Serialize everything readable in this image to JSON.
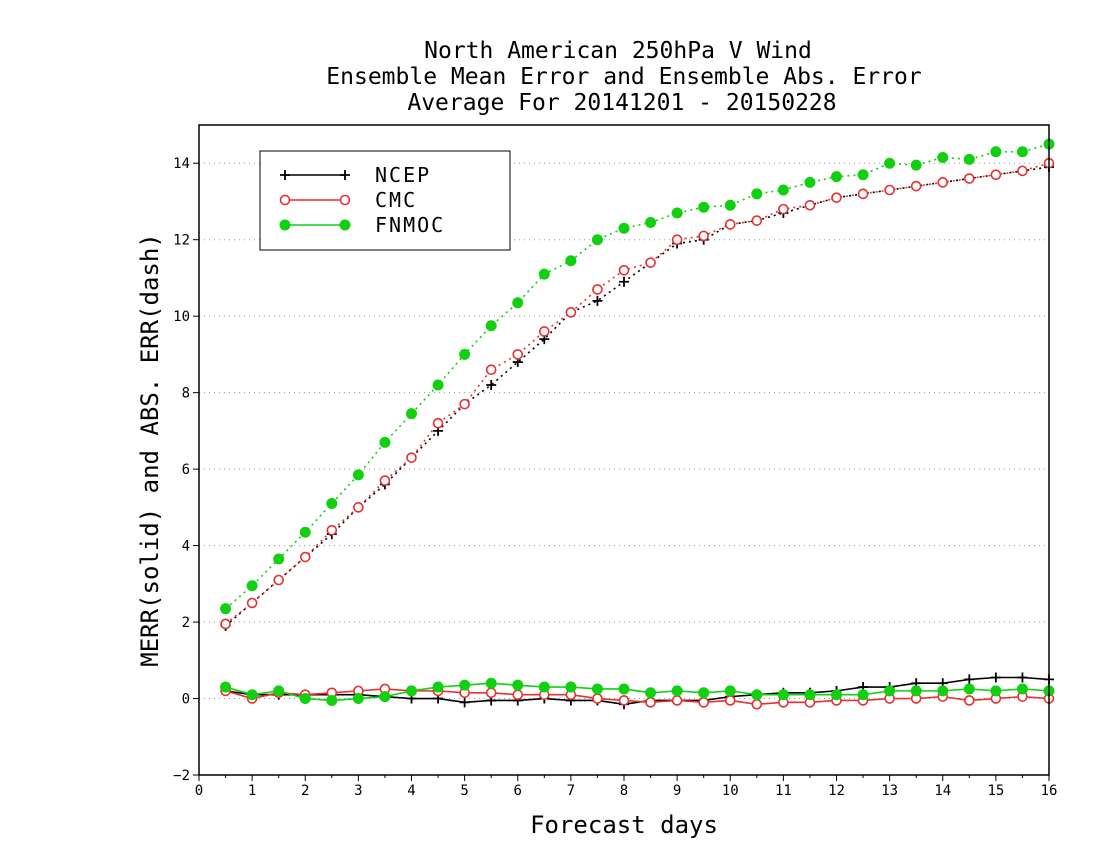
{
  "chart_data": {
    "type": "line",
    "title": [
      "North American 250hPa V Wind",
      "Ensemble Mean Error and Ensemble Abs. Error",
      "Average For 20141201 - 20150228"
    ],
    "xlabel": "Forecast days",
    "ylabel": "MERR(solid) and ABS. ERR(dash)",
    "xlim": [
      0,
      16
    ],
    "ylim": [
      -2,
      15
    ],
    "xticks": [
      0,
      1,
      2,
      3,
      4,
      5,
      6,
      7,
      8,
      9,
      10,
      11,
      12,
      13,
      14,
      15,
      16
    ],
    "yticks": [
      -2,
      0,
      2,
      4,
      6,
      8,
      10,
      12,
      14
    ],
    "grid": "horizontal dotted",
    "legend_position": "top-left",
    "x": [
      0.5,
      1.0,
      1.5,
      2.0,
      2.5,
      3.0,
      3.5,
      4.0,
      4.5,
      5.0,
      5.5,
      6.0,
      6.5,
      7.0,
      7.5,
      8.0,
      8.5,
      9.0,
      9.5,
      10.0,
      10.5,
      11.0,
      11.5,
      12.0,
      12.5,
      13.0,
      13.5,
      14.0,
      14.5,
      15.0,
      15.5,
      16.0
    ],
    "series": [
      {
        "name": "NCEP",
        "color": "#000000",
        "marker": "plus",
        "abs_error": [
          1.9,
          2.5,
          3.1,
          3.7,
          4.3,
          5.0,
          5.6,
          6.3,
          7.0,
          7.7,
          8.2,
          8.8,
          9.4,
          10.1,
          10.4,
          10.9,
          11.4,
          11.9,
          12.0,
          12.4,
          12.5,
          12.7,
          12.9,
          13.1,
          13.2,
          13.3,
          13.4,
          13.5,
          13.6,
          13.7,
          13.8,
          13.9
        ],
        "mean_error": [
          0.2,
          0.1,
          0.1,
          0.1,
          0.1,
          0.1,
          0.05,
          0.0,
          0.0,
          -0.1,
          -0.05,
          -0.05,
          0.0,
          -0.05,
          -0.05,
          -0.15,
          -0.05,
          -0.05,
          -0.05,
          0.05,
          0.1,
          0.15,
          0.15,
          0.2,
          0.3,
          0.3,
          0.4,
          0.4,
          0.5,
          0.55,
          0.55,
          0.5
        ]
      },
      {
        "name": "CMC",
        "color": "#e83030",
        "marker": "open-circle",
        "abs_error": [
          1.95,
          2.5,
          3.1,
          3.7,
          4.4,
          5.0,
          5.7,
          6.3,
          7.2,
          7.7,
          8.6,
          9.0,
          9.6,
          10.1,
          10.7,
          11.2,
          11.4,
          12.0,
          12.1,
          12.4,
          12.5,
          12.8,
          12.9,
          13.1,
          13.2,
          13.3,
          13.4,
          13.5,
          13.6,
          13.7,
          13.8,
          14.0
        ],
        "mean_error": [
          0.2,
          0.0,
          0.15,
          0.1,
          0.15,
          0.2,
          0.25,
          0.2,
          0.2,
          0.15,
          0.15,
          0.1,
          0.1,
          0.1,
          0.0,
          -0.05,
          -0.1,
          -0.05,
          -0.1,
          -0.05,
          -0.15,
          -0.1,
          -0.1,
          -0.05,
          -0.05,
          0.0,
          0.0,
          0.05,
          -0.05,
          0.0,
          0.05,
          0.0
        ]
      },
      {
        "name": "FNMOC",
        "color": "#10d010",
        "marker": "filled-circle",
        "abs_error": [
          2.35,
          2.95,
          3.65,
          4.35,
          5.1,
          5.85,
          6.7,
          7.45,
          8.2,
          9.0,
          9.75,
          10.35,
          11.1,
          11.45,
          12.0,
          12.3,
          12.45,
          12.7,
          12.85,
          12.9,
          13.2,
          13.3,
          13.5,
          13.65,
          13.7,
          14.0,
          13.95,
          14.15,
          14.1,
          14.3,
          14.3,
          14.5
        ],
        "mean_error": [
          0.3,
          0.1,
          0.2,
          0.0,
          -0.05,
          0.0,
          0.05,
          0.2,
          0.3,
          0.35,
          0.4,
          0.35,
          0.3,
          0.3,
          0.25,
          0.25,
          0.15,
          0.2,
          0.15,
          0.2,
          0.1,
          0.1,
          0.1,
          0.1,
          0.1,
          0.2,
          0.2,
          0.2,
          0.25,
          0.2,
          0.25,
          0.2
        ]
      }
    ]
  }
}
